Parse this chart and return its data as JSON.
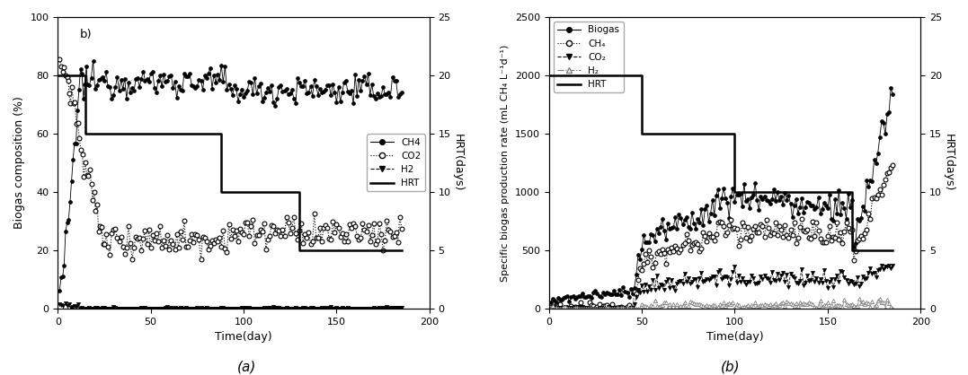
{
  "panel_a": {
    "label": "b)",
    "xlabel": "Time(day)",
    "ylabel": "Biogas composition (%)",
    "ylabel2": "HRT(days)",
    "xlim": [
      0,
      200
    ],
    "ylim": [
      0,
      100
    ],
    "ylim2": [
      0,
      25
    ],
    "yticks": [
      0,
      20,
      40,
      60,
      80,
      100
    ],
    "yticks2": [
      0,
      5,
      10,
      15,
      20,
      25
    ],
    "xticks": [
      0,
      50,
      100,
      150,
      200
    ],
    "hrt_x": [
      0,
      15,
      15,
      88,
      88,
      130,
      130,
      163,
      163,
      185
    ],
    "hrt_y": [
      20,
      20,
      15,
      15,
      10,
      10,
      5,
      5,
      5,
      5
    ],
    "legend_labels": [
      "CH4",
      "CO2",
      "H2",
      "HRT"
    ],
    "legend_loc": "center right"
  },
  "panel_b": {
    "xlabel": "Time(day)",
    "ylabel": "Specific biogas production rate (mL CH₄ L⁻¹d⁻¹)",
    "ylabel2": "HRT(days)",
    "xlim": [
      0,
      200
    ],
    "ylim": [
      0,
      2500
    ],
    "ylim2": [
      0,
      25
    ],
    "yticks": [
      0,
      500,
      1000,
      1500,
      2000,
      2500
    ],
    "yticks2": [
      0,
      5,
      10,
      15,
      20,
      25
    ],
    "xticks": [
      0,
      50,
      100,
      150,
      200
    ],
    "hrt_x": [
      0,
      50,
      50,
      100,
      100,
      163,
      163,
      185
    ],
    "hrt_y": [
      20,
      20,
      15,
      15,
      10,
      10,
      5,
      5
    ],
    "legend_labels": [
      "Biogas",
      "CH₄",
      "CO₂",
      "H₂",
      "HRT"
    ],
    "legend_loc": "upper left"
  },
  "caption_a": "(a)",
  "caption_b": "(b)"
}
